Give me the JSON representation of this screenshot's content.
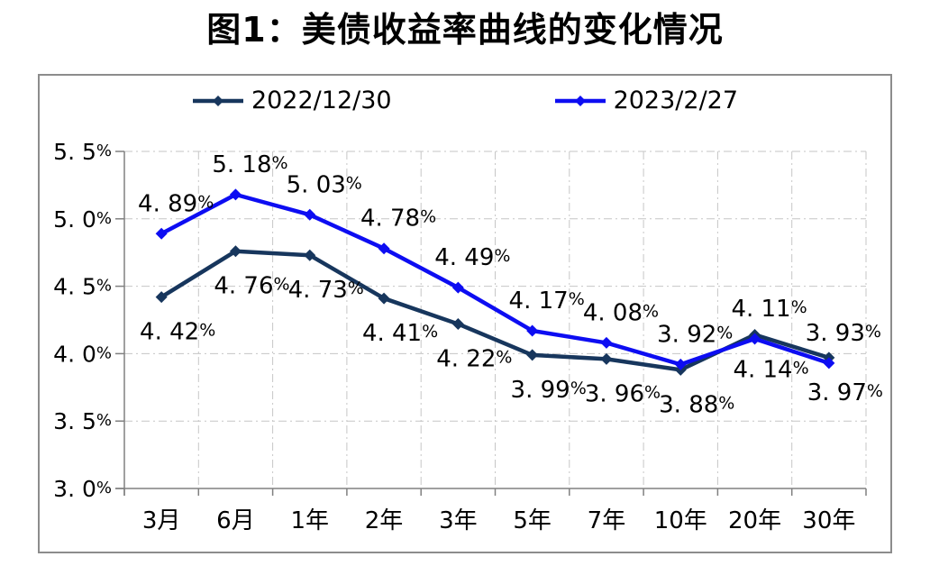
{
  "title": "图1：美债收益率曲线的变化情况",
  "colors": {
    "axis": "#808080",
    "gridline": "#c6c6c6",
    "frame_border": "#8c8c8c",
    "label_text": "#000000"
  },
  "chart_data": {
    "type": "line",
    "title": "图1：美债收益率曲线的变化情况",
    "categories": [
      "3月",
      "6月",
      "1年",
      "2年",
      "3年",
      "5年",
      "7年",
      "10年",
      "20年",
      "30年"
    ],
    "series": [
      {
        "name": "2022/12/30",
        "color": "#17365D",
        "marker": "diamond",
        "label_position": "below",
        "values": [
          4.42,
          4.76,
          4.73,
          4.41,
          4.22,
          3.99,
          3.96,
          3.88,
          4.14,
          3.97
        ],
        "labels": [
          "4. 42%",
          "4. 76%",
          "4. 73%",
          "4. 41%",
          "4. 22%",
          "3. 99%",
          "3. 96%",
          "3. 88%",
          "4. 14%",
          "3. 97%"
        ]
      },
      {
        "name": "2023/2/27",
        "color": "#0d0df2",
        "marker": "diamond",
        "label_position": "above",
        "values": [
          4.89,
          5.18,
          5.03,
          4.78,
          4.49,
          4.17,
          4.08,
          3.92,
          4.11,
          3.93
        ],
        "labels": [
          "4. 89%",
          "5. 18%",
          "5. 03%",
          "4. 78%",
          "4. 49%",
          "4. 17%",
          "4. 08%",
          "3. 92%",
          "4. 11%",
          "3. 93%"
        ]
      }
    ],
    "xlabel": "",
    "ylabel": "",
    "ylim": [
      3.0,
      5.5
    ],
    "ytick_values": [
      5.5,
      5.0,
      4.5,
      4.0,
      3.5,
      3.0
    ],
    "ytick_labels": [
      "5. 5%",
      "5. 0%",
      "4. 5%",
      "4. 0%",
      "3. 5%",
      "3. 0%"
    ],
    "grid": true,
    "gridline_style": "dash-dot",
    "legend_position": "top"
  }
}
